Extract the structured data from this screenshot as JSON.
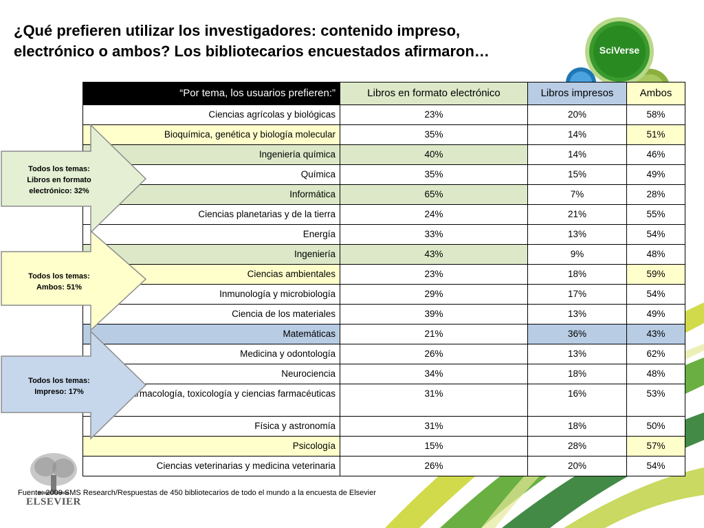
{
  "title": {
    "line1": "¿Qué prefieren utilizar los investigadores: contenido impreso,",
    "line2": "electrónico o ambos? Los bibliotecarios encuestados afirmaron…"
  },
  "logo": {
    "sciverse": "SciVerse",
    "elsevier": "ELSEVIER"
  },
  "table": {
    "headers": {
      "subject": "“Por tema, los usuarios prefieren:”",
      "ebook": "Libros en formato electrónico",
      "print": "Libros impresos",
      "both": "Ambos"
    },
    "rows": [
      {
        "subject": "Ciencias agrícolas y biológicas",
        "ebook": "23%",
        "print": "20%",
        "both": "58%",
        "hl": ""
      },
      {
        "subject": "Bioquímica, genética y biología molecular",
        "ebook": "35%",
        "print": "14%",
        "both": "51%",
        "hl": "yellow"
      },
      {
        "subject": "Ingeniería química",
        "ebook": "40%",
        "print": "14%",
        "both": "46%",
        "hl": "green"
      },
      {
        "subject": "Química",
        "ebook": "35%",
        "print": "15%",
        "both": "49%",
        "hl": ""
      },
      {
        "subject": "Informática",
        "ebook": "65%",
        "print": "7%",
        "both": "28%",
        "hl": "green"
      },
      {
        "subject": "Ciencias planetarias y de la tierra",
        "ebook": "24%",
        "print": "21%",
        "both": "55%",
        "hl": ""
      },
      {
        "subject": "Energía",
        "ebook": "33%",
        "print": "13%",
        "both": "54%",
        "hl": ""
      },
      {
        "subject": "Ingeniería",
        "ebook": "43%",
        "print": "9%",
        "both": "48%",
        "hl": "green"
      },
      {
        "subject": "Ciencias ambientales",
        "ebook": "23%",
        "print": "18%",
        "both": "59%",
        "hl": "yellow"
      },
      {
        "subject": "Inmunología y microbiología",
        "ebook": "29%",
        "print": "17%",
        "both": "54%",
        "hl": ""
      },
      {
        "subject": "Ciencia de los materiales",
        "ebook": "39%",
        "print": "13%",
        "both": "49%",
        "hl": ""
      },
      {
        "subject": "Matemáticas",
        "ebook": "21%",
        "print": "36%",
        "both": "43%",
        "hl": "blue"
      },
      {
        "subject": "Medicina y odontología",
        "ebook": "26%",
        "print": "13%",
        "both": "62%",
        "hl": ""
      },
      {
        "subject": "Neurociencia",
        "ebook": "34%",
        "print": "18%",
        "both": "48%",
        "hl": ""
      },
      {
        "subject": "Farmacología, toxicología y ciencias farmacéuticas",
        "ebook": "31%",
        "print": "16%",
        "both": "53%",
        "hl": "",
        "tall": true
      },
      {
        "subject": "Física y astronomía",
        "ebook": "31%",
        "print": "18%",
        "both": "50%",
        "hl": ""
      },
      {
        "subject": "Psicología",
        "ebook": "15%",
        "print": "28%",
        "both": "57%",
        "hl": "yellow"
      },
      {
        "subject": "Ciencias veterinarias y medicina veterinaria",
        "ebook": "26%",
        "print": "20%",
        "both": "54%",
        "hl": ""
      }
    ]
  },
  "callouts": [
    {
      "line1": "Todos los temas:",
      "line2": "Libros en formato",
      "line3": "electrónico: 32%",
      "color": "#e4efd4"
    },
    {
      "line1": "Todos los temas:",
      "line2": "Ambos: 51%",
      "line3": "",
      "color": "#ffffcc"
    },
    {
      "line1": "Todos los temas:",
      "line2": "Impreso: 17%",
      "line3": "",
      "color": "#c6d7ec"
    }
  ],
  "source": "Fuente: 2009 SMS Research/Respuestas de 450 bibliotecarios de todo el mundo a la encuesta de Elsevier"
}
